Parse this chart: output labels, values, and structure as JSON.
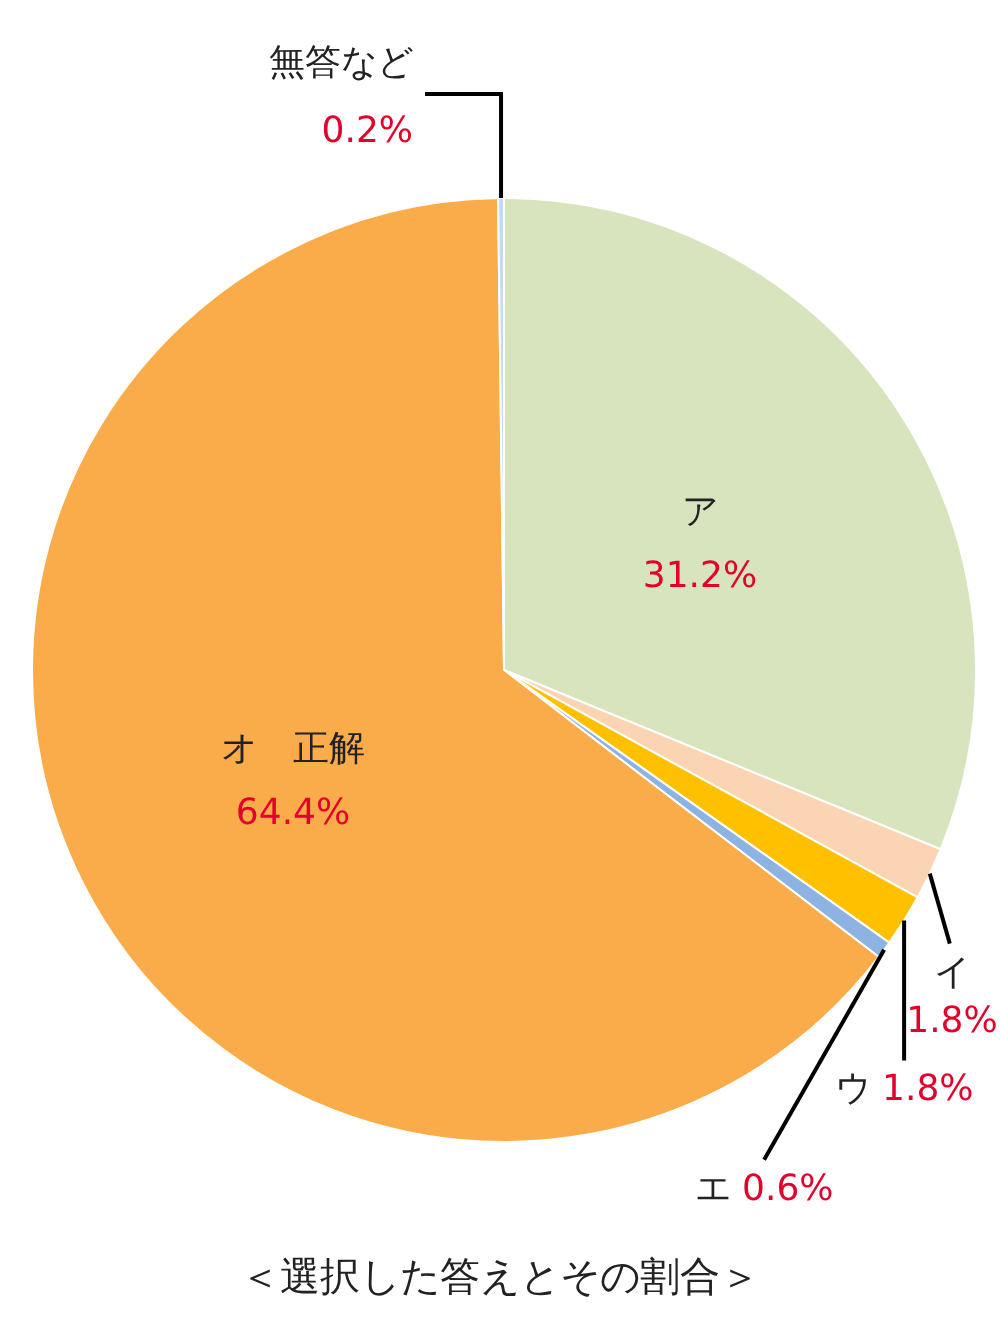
{
  "chart_data": {
    "type": "pie",
    "title": "＜選択した答えとその割合＞",
    "categories": [
      "ア",
      "イ",
      "ウ",
      "エ",
      "オ　正解",
      "無答など"
    ],
    "values": [
      31.2,
      1.8,
      1.8,
      0.6,
      64.4,
      0.2
    ],
    "colors": [
      "#d8e4bd",
      "#fbd4b4",
      "#ffc000",
      "#8db3e2",
      "#fbac4a",
      "#c6d9f0"
    ],
    "value_labels": [
      "31.2%",
      "1.8%",
      "1.8%",
      "0.6%",
      "64.4%",
      "0.2%"
    ]
  }
}
